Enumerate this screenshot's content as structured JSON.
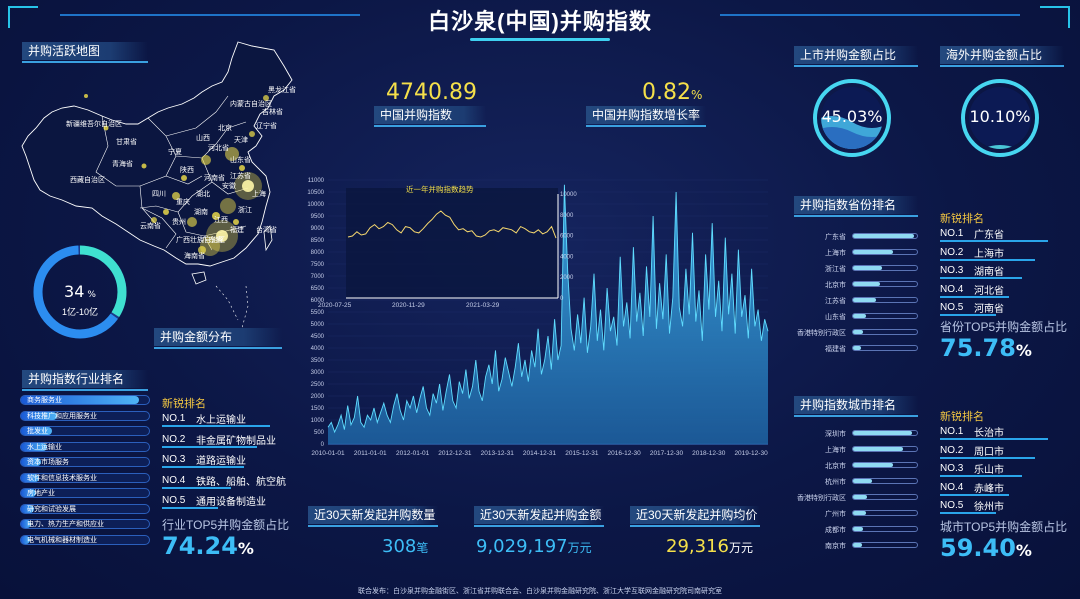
{
  "header": {
    "title": "白沙泉(中国)并购指数"
  },
  "map": {
    "tag": "并购活跃地图",
    "regions": [
      "黑龙江省",
      "吉林省",
      "内蒙古自治区",
      "辽宁省",
      "新疆维吾尔自治区",
      "甘肃省",
      "宁夏",
      "山西",
      "河北省",
      "北京",
      "天津",
      "山东省",
      "青海省",
      "陕西",
      "河南省",
      "江苏省",
      "安徽",
      "上海",
      "四川",
      "湖北",
      "西藏自治区",
      "重庆",
      "湖南",
      "浙江",
      "贵州",
      "江西",
      "福建",
      "云南省",
      "广西壮族自治区",
      "广东省",
      "台湾省",
      "海南省"
    ]
  },
  "donut": {
    "value": "34",
    "unit": "%",
    "label": "1亿-10亿",
    "fraction": 0.34
  },
  "amount_dist_tag": "并购金额分布",
  "kpi": {
    "index_value": "4740.89",
    "index_label": "中国并购指数",
    "growth_value": "0.82",
    "growth_unit": "%",
    "growth_label": "中国并购指数增长率"
  },
  "right_top": {
    "listed_tag": "上市并购金额占比",
    "listed_value": "45.03%",
    "overseas_tag": "海外并购金额占比",
    "overseas_value": "10.10%"
  },
  "industry": {
    "tag": "并购指数行业排名",
    "items": [
      {
        "label": "商务服务业",
        "fill": 0.92
      },
      {
        "label": "科技推广和应用服务业",
        "fill": 0.28
      },
      {
        "label": "批发业",
        "fill": 0.24
      },
      {
        "label": "水上运输业",
        "fill": 0.2
      },
      {
        "label": "资本市场服务",
        "fill": 0.16
      },
      {
        "label": "软件和信息技术服务业",
        "fill": 0.14
      },
      {
        "label": "房地产业",
        "fill": 0.12
      },
      {
        "label": "研究和试验发展",
        "fill": 0.1
      },
      {
        "label": "电力、热力生产和供应业",
        "fill": 0.08
      },
      {
        "label": "电气机械和器材制造业",
        "fill": 0.07
      }
    ],
    "new_head": "新锐排名",
    "new_items": [
      {
        "no": "NO.1",
        "name": "水上运输业"
      },
      {
        "no": "NO.2",
        "name": "非金属矿物制品业"
      },
      {
        "no": "NO.3",
        "name": "道路运输业"
      },
      {
        "no": "NO.4",
        "name": "铁路、船舶、航空航"
      },
      {
        "no": "NO.5",
        "name": "通用设备制造业"
      }
    ],
    "top5_caption": "行业TOP5并购金额占比",
    "top5_value": "74.24",
    "top5_unit": "%"
  },
  "province": {
    "tag": "并购指数省份排名",
    "items": [
      {
        "label": "广东省",
        "fill": 0.95
      },
      {
        "label": "上海市",
        "fill": 0.62
      },
      {
        "label": "浙江省",
        "fill": 0.45
      },
      {
        "label": "北京市",
        "fill": 0.42
      },
      {
        "label": "江苏省",
        "fill": 0.36
      },
      {
        "label": "山东省",
        "fill": 0.2
      },
      {
        "label": "香港特别行政区",
        "fill": 0.15
      },
      {
        "label": "福建省",
        "fill": 0.12
      }
    ],
    "new_head": "新锐排名",
    "new_items": [
      {
        "no": "NO.1",
        "name": "广东省"
      },
      {
        "no": "NO.2",
        "name": "上海市"
      },
      {
        "no": "NO.3",
        "name": "湖南省"
      },
      {
        "no": "NO.4",
        "name": "河北省"
      },
      {
        "no": "NO.5",
        "name": "河南省"
      }
    ],
    "top5_caption": "省份TOP5并购金额占比",
    "top5_value": "75.78",
    "top5_unit": "%"
  },
  "city": {
    "tag": "并购指数城市排名",
    "items": [
      {
        "label": "深圳市",
        "fill": 0.92
      },
      {
        "label": "上海市",
        "fill": 0.78
      },
      {
        "label": "北京市",
        "fill": 0.62
      },
      {
        "label": "杭州市",
        "fill": 0.3
      },
      {
        "label": "香港特别行政区",
        "fill": 0.22
      },
      {
        "label": "广州市",
        "fill": 0.2
      },
      {
        "label": "成都市",
        "fill": 0.16
      },
      {
        "label": "南京市",
        "fill": 0.14
      }
    ],
    "new_head": "新锐排名",
    "new_items": [
      {
        "no": "NO.1",
        "name": "长治市"
      },
      {
        "no": "NO.2",
        "name": "周口市"
      },
      {
        "no": "NO.3",
        "name": "乐山市"
      },
      {
        "no": "NO.4",
        "name": "赤峰市"
      },
      {
        "no": "NO.5",
        "name": "徐州市"
      }
    ],
    "top5_caption": "城市TOP5并购金额占比",
    "top5_value": "59.40",
    "top5_unit": "%"
  },
  "bottom_kpi": {
    "count_label": "近30天新发起并购数量",
    "count_value": "308",
    "count_unit": "笔",
    "amount_label": "近30天新发起并购金额",
    "amount_value": "9,029,197",
    "amount_unit": "万元",
    "avg_label": "近30天新发起并购均价",
    "avg_value": "29,316",
    "avg_unit": "万元"
  },
  "chart_data": [
    {
      "type": "area",
      "title": "",
      "xlabel": "",
      "ylabel": "",
      "ylim": [
        0,
        11000
      ],
      "y_ticks": [
        "0",
        "500",
        "1000",
        "1500",
        "2000",
        "2500",
        "3000",
        "3500",
        "4000",
        "4500",
        "5000",
        "5500",
        "6000",
        "6500",
        "7000",
        "7500",
        "8000",
        "8500",
        "9000",
        "9500",
        "10000",
        "10500",
        "11000"
      ],
      "x_ticks": [
        "2010-01-01",
        "2011-01-01",
        "2012-01-01",
        "2012-12-31",
        "2013-12-31",
        "2014-12-31",
        "2015-12-31",
        "2016-12-30",
        "2017-12-30",
        "2018-12-30",
        "2019-12-30"
      ],
      "x_range": [
        "2010-01-01",
        "2021-08-01"
      ],
      "series": [
        {
          "values": [
            700,
            900,
            500,
            800,
            1200,
            600,
            1600,
            800,
            1100,
            2000,
            900,
            700,
            1200,
            1000,
            1500,
            900,
            1300,
            1700,
            1200,
            900,
            1600,
            2100,
            1400,
            1000,
            1800,
            1500,
            2000,
            1300,
            1900,
            2400,
            1500,
            1200,
            2100,
            1700,
            2500,
            1400,
            2200,
            2900,
            1800,
            1500,
            2600,
            2100,
            3100,
            1900,
            2400,
            3500,
            2200,
            1800,
            2800,
            3300,
            2500,
            3900,
            2200,
            2700,
            3600,
            3000,
            2400,
            3200,
            4200,
            2800,
            3500,
            2600,
            3900,
            3200,
            4800,
            2900,
            3500,
            4500,
            3100,
            5200,
            3500,
            4100,
            10800,
            7200,
            4800,
            3900,
            5400,
            4200,
            6100,
            3800,
            4900,
            7100,
            4300,
            5600,
            3900,
            6500,
            4700,
            5300,
            4100,
            7800,
            4900,
            5900,
            4400,
            8200,
            5100,
            6300,
            4500,
            7400,
            5300,
            9500,
            4800,
            6700,
            5200,
            7900,
            4600,
            6100,
            10500,
            5700,
            4900,
            7300,
            5400,
            8800,
            5100,
            6400,
            4300,
            7900,
            5600,
            9200,
            5300,
            6800,
            4700,
            8600,
            5400,
            7100,
            4600,
            8100,
            5300,
            6200,
            4400,
            7300,
            4900,
            5600,
            4300,
            5200,
            4700
          ]
        }
      ]
    },
    {
      "type": "line",
      "title": "近一年并购指数趋势",
      "x_ticks": [
        "2020-07-25",
        "2020-11-29",
        "2021-03-29"
      ],
      "y_ticks": [
        "0",
        "2000",
        "4000",
        "6000",
        "8000",
        "10000"
      ],
      "ylim": [
        0,
        10000
      ],
      "series": [
        {
          "values": [
            4900,
            5000,
            5400,
            5100,
            5200,
            5800,
            6100,
            5700,
            5900,
            6300,
            6100,
            5600,
            5300,
            5900,
            5800,
            5400,
            5300,
            5700,
            6200,
            6600,
            7100,
            7400,
            7000,
            6800,
            6100,
            5600,
            5700,
            5400,
            5500,
            5000,
            4900,
            5100,
            5500,
            5600,
            5400,
            5800,
            5700,
            5600,
            5300,
            5900,
            5700,
            5400,
            5300,
            5600,
            5200,
            5400,
            5900,
            4800
          ]
        }
      ]
    }
  ],
  "footer": "联合发布：白沙泉并购金融街区、浙江省并购联合会、白沙泉并购金融研究院、浙江大学互联网金融研究院司南研究室"
}
